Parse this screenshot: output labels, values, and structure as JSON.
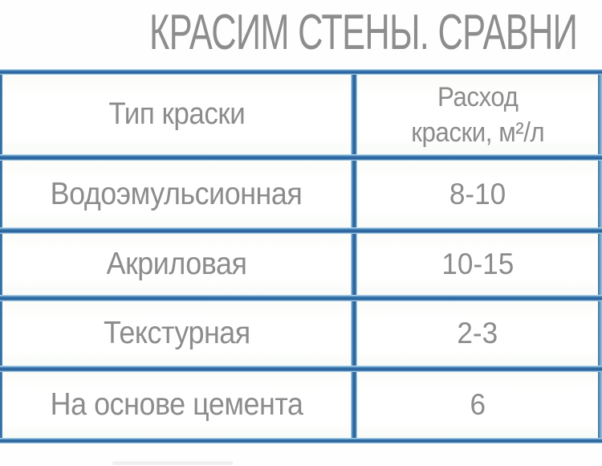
{
  "page": {
    "title": "КРАСИМ СТЕНЫ. СРАВНИ"
  },
  "table": {
    "header": {
      "col1": "Тип краски",
      "col2_lines": [
        "Расход",
        "краски, м²/л"
      ]
    },
    "rows": [
      {
        "type": "Водоэмульсионная",
        "value": "8-10"
      },
      {
        "type": "Акриловая",
        "value": "10-15"
      },
      {
        "type": "Текстурная",
        "value": "2-3"
      },
      {
        "type": "На основе цемента",
        "value": "6"
      }
    ]
  },
  "colors": {
    "border_blue_dark": "#2d669e",
    "border_blue_mid": "#5e9ccb",
    "border_blue_light": "#d2e8f6",
    "text_gray": "#8c8c8c",
    "background": "#fefefe"
  },
  "chart_data": {
    "type": "table",
    "title": "КРАСИМ СТЕНЫ. СРАВНИ",
    "columns": [
      "Тип краски",
      "Расход краски, м²/л"
    ],
    "rows": [
      [
        "Водоэмульсионная",
        "8-10"
      ],
      [
        "Акриловая",
        "10-15"
      ],
      [
        "Текстурная",
        "2-3"
      ],
      [
        "На основе цемента",
        "6"
      ]
    ],
    "notes": "title and right column cropped at right image edge"
  }
}
